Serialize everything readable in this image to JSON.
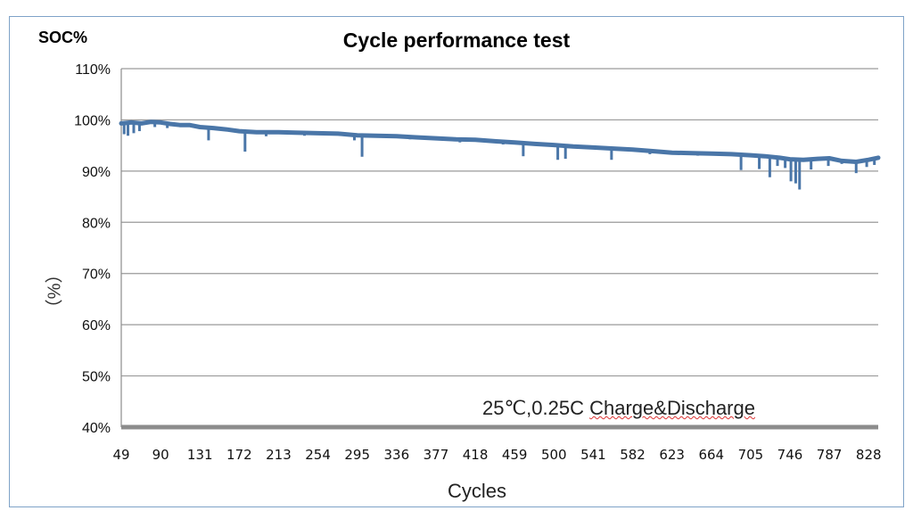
{
  "chart_data": {
    "type": "line",
    "title": "Cycle performance test",
    "ylabel_top": "SOC%",
    "ylabel_unit": "（%）",
    "xlabel": "Cycles",
    "annotation_prefix": "25℃,0.25C ",
    "annotation_suffix": "Charge&Discharge",
    "yticks": [
      "110%",
      "100%",
      "90%",
      "80%",
      "70%",
      "60%",
      "50%",
      "40%"
    ],
    "ytick_values": [
      110,
      100,
      90,
      80,
      70,
      60,
      50,
      40
    ],
    "ylim": [
      40,
      110
    ],
    "xticks": [
      "49",
      "90",
      "131",
      "172",
      "213",
      "254",
      "295",
      "336",
      "377",
      "418",
      "459",
      "500",
      "541",
      "582",
      "623",
      "664",
      "705",
      "746",
      "787",
      "828"
    ],
    "xlim": [
      49,
      838
    ],
    "grid": true,
    "line_color": "#4a76a8",
    "series": [
      {
        "x": [
          49,
          60,
          70,
          80,
          90,
          100,
          110,
          120,
          131,
          145,
          160,
          172,
          190,
          213,
          230,
          254,
          275,
          295,
          315,
          336,
          356,
          377,
          398,
          418,
          440,
          459,
          480,
          500,
          520,
          541,
          562,
          582,
          603,
          623,
          644,
          664,
          685,
          705,
          720,
          735,
          746,
          760,
          775,
          787,
          800,
          815,
          828,
          838
        ],
        "values": [
          99.3,
          99.5,
          99.3,
          99.6,
          99.5,
          99.2,
          99.0,
          99.0,
          98.6,
          98.4,
          98.1,
          97.8,
          97.6,
          97.6,
          97.5,
          97.4,
          97.3,
          97.0,
          96.9,
          96.8,
          96.6,
          96.4,
          96.2,
          96.1,
          95.8,
          95.6,
          95.3,
          95.1,
          94.8,
          94.6,
          94.4,
          94.2,
          93.9,
          93.6,
          93.5,
          93.4,
          93.3,
          93.1,
          92.9,
          92.6,
          92.3,
          92.2,
          92.4,
          92.5,
          92.0,
          91.8,
          92.2,
          92.6
        ]
      }
    ],
    "dips": [
      {
        "x": 52,
        "value": 97.2
      },
      {
        "x": 56,
        "value": 96.9
      },
      {
        "x": 62,
        "value": 97.4
      },
      {
        "x": 68,
        "value": 97.8
      },
      {
        "x": 84,
        "value": 98.6
      },
      {
        "x": 97,
        "value": 98.4
      },
      {
        "x": 140,
        "value": 96.0
      },
      {
        "x": 178,
        "value": 93.8
      },
      {
        "x": 200,
        "value": 96.8
      },
      {
        "x": 240,
        "value": 96.9
      },
      {
        "x": 292,
        "value": 96.0
      },
      {
        "x": 300,
        "value": 92.8
      },
      {
        "x": 350,
        "value": 96.2
      },
      {
        "x": 402,
        "value": 95.6
      },
      {
        "x": 447,
        "value": 95.2
      },
      {
        "x": 468,
        "value": 92.9
      },
      {
        "x": 504,
        "value": 92.2
      },
      {
        "x": 512,
        "value": 92.4
      },
      {
        "x": 560,
        "value": 92.2
      },
      {
        "x": 600,
        "value": 93.3
      },
      {
        "x": 650,
        "value": 93.0
      },
      {
        "x": 695,
        "value": 90.2
      },
      {
        "x": 714,
        "value": 90.4
      },
      {
        "x": 725,
        "value": 88.8
      },
      {
        "x": 733,
        "value": 91.0
      },
      {
        "x": 741,
        "value": 90.6
      },
      {
        "x": 747,
        "value": 88.0
      },
      {
        "x": 752,
        "value": 87.6
      },
      {
        "x": 756,
        "value": 86.4
      },
      {
        "x": 768,
        "value": 90.3
      },
      {
        "x": 786,
        "value": 91.0
      },
      {
        "x": 800,
        "value": 91.4
      },
      {
        "x": 815,
        "value": 89.6
      },
      {
        "x": 826,
        "value": 90.8
      },
      {
        "x": 834,
        "value": 91.2
      }
    ]
  }
}
